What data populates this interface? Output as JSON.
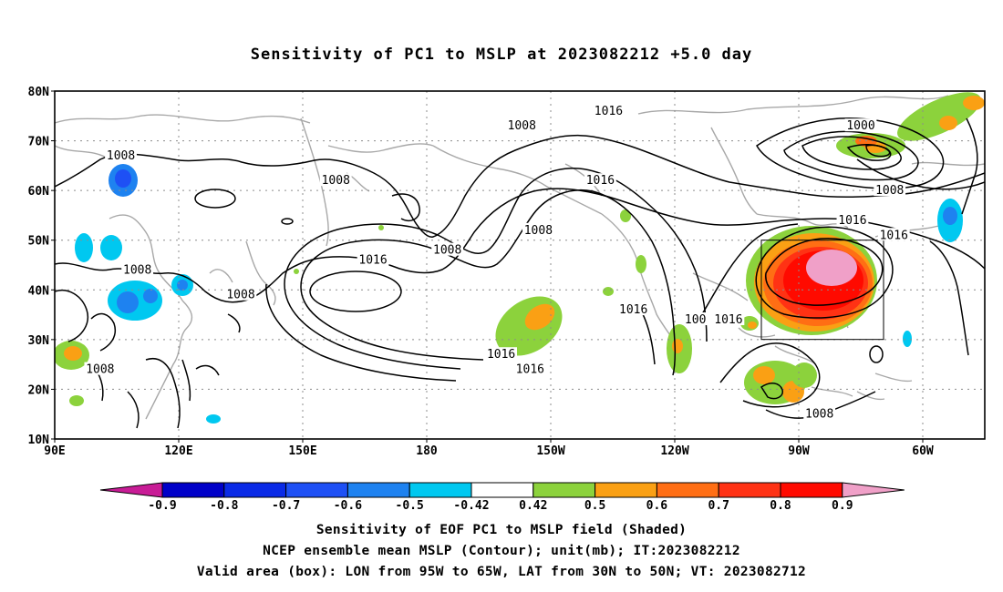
{
  "title": "Sensitivity of PC1 to MSLP at 2023082212 +5.0 day",
  "map": {
    "lat_labels": [
      "80N",
      "70N",
      "60N",
      "50N",
      "40N",
      "30N",
      "20N",
      "10N"
    ],
    "lon_labels": [
      "90E",
      "120E",
      "150E",
      "180",
      "150W",
      "120W",
      "90W",
      "60W"
    ],
    "extent": {
      "lon_west": "90E",
      "lon_east": "45W",
      "lat_south": 10,
      "lat_north": 80
    },
    "valid_box": {
      "lon_west": -95,
      "lon_east": -65,
      "lat_south": 30,
      "lat_north": 50
    },
    "contour_labels": [
      {
        "text": "1016",
        "lon": -136,
        "lat": 76
      },
      {
        "text": "1008",
        "lon": -157,
        "lat": 73
      },
      {
        "text": "1000",
        "lon": -75,
        "lat": 73
      },
      {
        "text": "1008",
        "lon": 106,
        "lat": 67
      },
      {
        "text": "1008",
        "lon": 158,
        "lat": 62
      },
      {
        "text": "1016",
        "lon": -138,
        "lat": 62
      },
      {
        "text": "1008",
        "lon": -68,
        "lat": 60
      },
      {
        "text": "1008",
        "lon": -153,
        "lat": 52
      },
      {
        "text": "1016",
        "lon": -77,
        "lat": 54
      },
      {
        "text": "1016",
        "lon": -67,
        "lat": 51
      },
      {
        "text": "1008",
        "lon": -175,
        "lat": 48
      },
      {
        "text": "1016",
        "lon": 167,
        "lat": 46
      },
      {
        "text": "1008",
        "lon": 110,
        "lat": 44
      },
      {
        "text": "1008",
        "lon": 135,
        "lat": 39
      },
      {
        "text": "1016",
        "lon": -130,
        "lat": 36
      },
      {
        "text": "100",
        "lon": -115,
        "lat": 34
      },
      {
        "text": "1016",
        "lon": -107,
        "lat": 34
      },
      {
        "text": "1016",
        "lon": -162,
        "lat": 27
      },
      {
        "text": "1016",
        "lon": -155,
        "lat": 24
      },
      {
        "text": "1008",
        "lon": 101,
        "lat": 24
      },
      {
        "text": "1008",
        "lon": -85,
        "lat": 15
      }
    ]
  },
  "colorbar": {
    "labels": [
      "-0.9",
      "-0.8",
      "-0.7",
      "-0.6",
      "-0.5",
      "-0.42",
      "0.42",
      "0.5",
      "0.6",
      "0.7",
      "0.8",
      "0.9"
    ],
    "colors": [
      "#c81c96",
      "#0000c8",
      "#0a2ae6",
      "#1e50f5",
      "#1e82f0",
      "#00c8f0",
      "#ffffff",
      "#8cd23c",
      "#faa014",
      "#ff6e14",
      "#ff3214",
      "#ff0a00",
      "#f0a0c8"
    ]
  },
  "captions": {
    "line1": "Sensitivity of EOF PC1 to MSLP field (Shaded)",
    "line2": "NCEP ensemble mean MSLP (Contour); unit(mb); IT:2023082212",
    "line3": "Valid area (box): LON from 95W to 65W, LAT from 30N to 50N; VT: 2023082712"
  }
}
